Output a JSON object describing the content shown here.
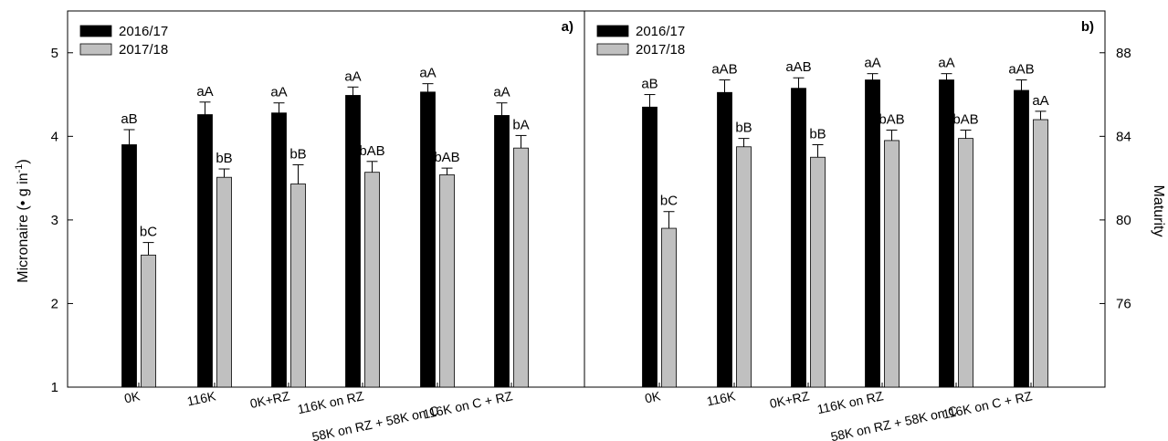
{
  "chart_data": [
    {
      "panel_label": "a)",
      "type": "bar",
      "ylabel": "Micronaire (• g in",
      "ylabel_sup": "-1",
      "ylabel_close": ")",
      "ylim": [
        1,
        5.5
      ],
      "yticks": [
        1,
        2,
        3,
        4,
        5
      ],
      "categories": [
        "0K",
        "116K",
        "0K+RZ",
        "116K on RZ",
        "58K on RZ + 58K on C",
        "116K on C + RZ"
      ],
      "series": [
        {
          "name": "2016/17",
          "color": "#000000",
          "values": [
            3.9,
            4.26,
            4.28,
            4.49,
            4.53,
            4.25
          ],
          "errors": [
            0.18,
            0.15,
            0.12,
            0.1,
            0.1,
            0.15
          ],
          "labels": [
            "aB",
            "aA",
            "aA",
            "aA",
            "aA",
            "aA"
          ]
        },
        {
          "name": "2017/18",
          "color": "#c0c0c0",
          "values": [
            2.58,
            3.51,
            3.43,
            3.57,
            3.54,
            3.86
          ],
          "errors": [
            0.15,
            0.1,
            0.23,
            0.13,
            0.08,
            0.15
          ],
          "labels": [
            "bC",
            "bB",
            "bB",
            "bAB",
            "bAB",
            "bA"
          ]
        }
      ],
      "legend_position": "top-left"
    },
    {
      "panel_label": "b)",
      "type": "bar",
      "ylabel": "Maturity",
      "ylim": [
        72,
        90
      ],
      "yticks": [
        76,
        80,
        84,
        88
      ],
      "categories": [
        "0K",
        "116K",
        "0K+RZ",
        "116K on RZ",
        "58K on RZ + 58K on C",
        "116K on C + RZ"
      ],
      "series": [
        {
          "name": "2016/17",
          "color": "#000000",
          "values": [
            85.4,
            86.1,
            86.3,
            86.7,
            86.7,
            86.2
          ],
          "errors": [
            0.6,
            0.6,
            0.5,
            0.3,
            0.3,
            0.5
          ],
          "labels": [
            "aB",
            "aAB",
            "aAB",
            "aA",
            "aA",
            "aAB"
          ]
        },
        {
          "name": "2017/18",
          "color": "#c0c0c0",
          "values": [
            79.6,
            83.5,
            83.0,
            83.8,
            83.9,
            84.8
          ],
          "errors": [
            0.8,
            0.4,
            0.6,
            0.5,
            0.4,
            0.4
          ],
          "labels": [
            "bC",
            "bB",
            "bB",
            "bAB",
            "bAB",
            "aA"
          ]
        }
      ],
      "legend_position": "top-left"
    }
  ]
}
